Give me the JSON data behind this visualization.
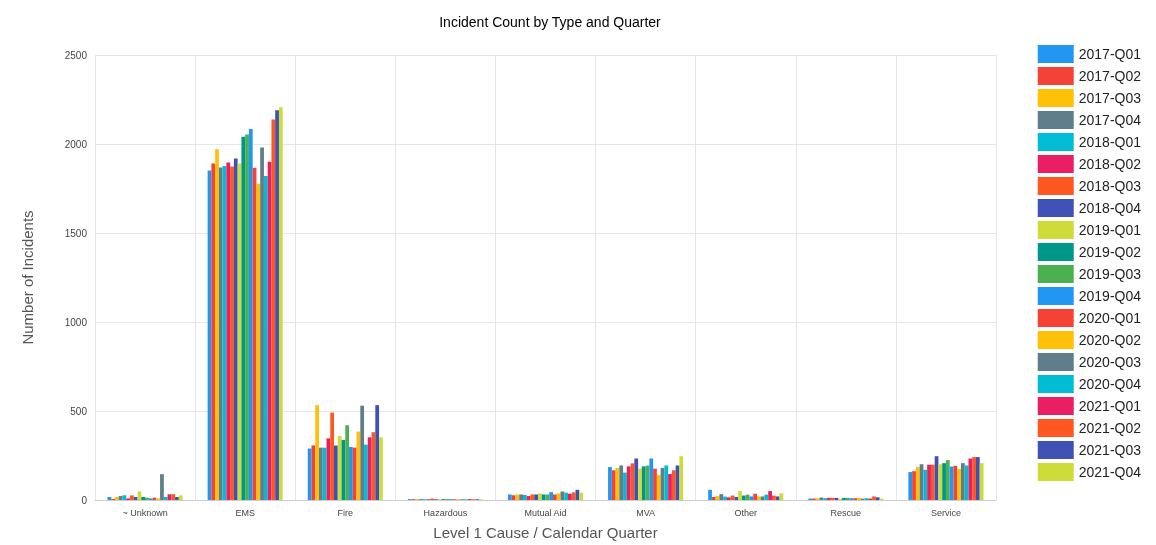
{
  "chart_data": {
    "type": "bar",
    "title": "Incident Count by Type and Quarter",
    "xlabel": "Level 1 Cause / Calendar Quarter",
    "ylabel": "Number of Incidents",
    "categories": [
      "~ Unknown",
      "EMS",
      "Fire",
      "Hazardous",
      "Mutual Aid",
      "MVA",
      "Other",
      "Rescue",
      "Service"
    ],
    "ylim": [
      0,
      2500
    ],
    "yticks": [
      0,
      500,
      1000,
      1500,
      2000,
      2500
    ],
    "grid": true,
    "legend": "right",
    "series": [
      {
        "name": "2017-Q01",
        "color": "#2196f3",
        "values": [
          17,
          1851,
          289,
          5,
          31,
          185,
          57,
          8,
          157
        ]
      },
      {
        "name": "2017-Q02",
        "color": "#f44336",
        "values": [
          6,
          1890,
          307,
          5,
          26,
          167,
          17,
          8,
          162
        ]
      },
      {
        "name": "2017-Q03",
        "color": "#ffc107",
        "values": [
          17,
          1970,
          533,
          5,
          31,
          180,
          22,
          10,
          185
        ]
      },
      {
        "name": "2017-Q04",
        "color": "#607d8b",
        "values": [
          22,
          1868,
          294,
          5,
          31,
          194,
          33,
          14,
          201
        ]
      },
      {
        "name": "2018-Q01",
        "color": "#00bcd4",
        "values": [
          26,
          1877,
          294,
          4,
          28,
          154,
          19,
          10,
          170
        ]
      },
      {
        "name": "2018-Q02",
        "color": "#e91e63",
        "values": [
          9,
          1896,
          346,
          4,
          22,
          189,
          15,
          12,
          198
        ]
      },
      {
        "name": "2018-Q03",
        "color": "#ff5722",
        "values": [
          26,
          1873,
          491,
          8,
          31,
          206,
          25,
          12,
          198
        ]
      },
      {
        "name": "2018-Q04",
        "color": "#3f51b5",
        "values": [
          17,
          1918,
          306,
          4,
          31,
          233,
          17,
          12,
          246
        ]
      },
      {
        "name": "2019-Q01",
        "color": "#cddc39",
        "values": [
          48,
          1890,
          359,
          5,
          37,
          176,
          50,
          8,
          201
        ]
      },
      {
        "name": "2019-Q02",
        "color": "#009688",
        "values": [
          17,
          2041,
          337,
          5,
          31,
          189,
          25,
          12,
          207
        ]
      },
      {
        "name": "2019-Q03",
        "color": "#4caf50",
        "values": [
          13,
          2054,
          420,
          5,
          31,
          193,
          30,
          12,
          224
        ]
      },
      {
        "name": "2019-Q04",
        "color": "#2196f3",
        "values": [
          9,
          2084,
          298,
          5,
          44,
          233,
          20,
          10,
          188
        ]
      },
      {
        "name": "2020-Q01",
        "color": "#f44336",
        "values": [
          13,
          1866,
          294,
          4,
          31,
          176,
          35,
          10,
          192
        ]
      },
      {
        "name": "2020-Q02",
        "color": "#ffc107",
        "values": [
          9,
          1777,
          385,
          5,
          37,
          141,
          20,
          12,
          175
        ]
      },
      {
        "name": "2020-Q03",
        "color": "#607d8b",
        "values": [
          145,
          1980,
          530,
          4,
          48,
          180,
          20,
          8,
          207
        ]
      },
      {
        "name": "2020-Q04",
        "color": "#00bcd4",
        "values": [
          17,
          1820,
          311,
          4,
          41,
          194,
          30,
          10,
          194
        ]
      },
      {
        "name": "2021-Q01",
        "color": "#e91e63",
        "values": [
          32,
          1900,
          352,
          5,
          35,
          146,
          50,
          8,
          233
        ]
      },
      {
        "name": "2021-Q02",
        "color": "#ff5722",
        "values": [
          33,
          2138,
          381,
          4,
          43,
          167,
          25,
          20,
          241
        ]
      },
      {
        "name": "2021-Q03",
        "color": "#3f51b5",
        "values": [
          17,
          2190,
          533,
          4,
          57,
          194,
          20,
          15,
          241
        ]
      },
      {
        "name": "2021-Q04",
        "color": "#cddc39",
        "values": [
          26,
          2207,
          352,
          4,
          41,
          246,
          38,
          8,
          207
        ]
      }
    ]
  }
}
